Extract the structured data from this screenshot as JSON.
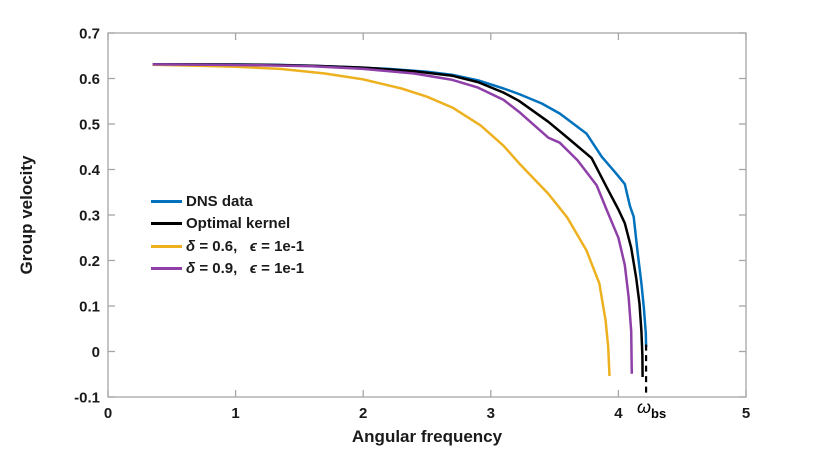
{
  "chart_data": {
    "type": "line",
    "title": "",
    "xlabel": "Angular frequency",
    "ylabel": "Group velocity",
    "xlim": [
      0,
      5
    ],
    "ylim": [
      -0.1,
      0.7
    ],
    "grid": false,
    "box": true,
    "tick_direction": "in",
    "legend_position": "inside-left-middle",
    "axis_color": "#a6a6a6",
    "text_color": "#1a1a1a",
    "xticks": [
      0,
      1,
      2,
      3,
      4,
      5
    ],
    "xtick_labels": [
      "0",
      "1",
      "2",
      "3",
      "4",
      "5"
    ],
    "yticks": [
      -0.1,
      0,
      0.1,
      0.2,
      0.3,
      0.4,
      0.5,
      0.6,
      0.7
    ],
    "ytick_labels": [
      "-0.1",
      "0",
      "0.1",
      "0.2",
      "0.3",
      "0.4",
      "0.5",
      "0.6",
      "0.7"
    ],
    "series": [
      {
        "name": "DNS data",
        "color": "#0072BD",
        "label_parts": [
          {
            "t": "DNS data",
            "i": false
          }
        ],
        "points": [
          [
            0.35,
            0.631
          ],
          [
            0.7,
            0.631
          ],
          [
            1.0,
            0.631
          ],
          [
            1.3,
            0.63
          ],
          [
            1.6,
            0.628
          ],
          [
            1.9,
            0.625
          ],
          [
            2.2,
            0.621
          ],
          [
            2.5,
            0.615
          ],
          [
            2.7,
            0.608
          ],
          [
            2.9,
            0.596
          ],
          [
            3.1,
            0.578
          ],
          [
            3.22,
            0.566
          ],
          [
            3.4,
            0.545
          ],
          [
            3.54,
            0.523
          ],
          [
            3.75,
            0.479
          ],
          [
            3.87,
            0.428
          ],
          [
            3.98,
            0.392
          ],
          [
            4.05,
            0.368
          ],
          [
            4.09,
            0.32
          ],
          [
            4.12,
            0.296
          ],
          [
            4.15,
            0.22
          ],
          [
            4.18,
            0.15
          ],
          [
            4.2,
            0.095
          ],
          [
            4.215,
            0.04
          ],
          [
            4.217,
            0.01
          ]
        ]
      },
      {
        "name": "Optimal kernel",
        "color": "#000000",
        "label_parts": [
          {
            "t": "Optimal kernel",
            "i": false
          }
        ],
        "points": [
          [
            0.35,
            0.631
          ],
          [
            0.8,
            0.631
          ],
          [
            1.2,
            0.63
          ],
          [
            1.6,
            0.628
          ],
          [
            2.0,
            0.624
          ],
          [
            2.4,
            0.616
          ],
          [
            2.7,
            0.606
          ],
          [
            2.9,
            0.592
          ],
          [
            3.1,
            0.569
          ],
          [
            3.22,
            0.551
          ],
          [
            3.45,
            0.505
          ],
          [
            3.6,
            0.47
          ],
          [
            3.79,
            0.425
          ],
          [
            3.91,
            0.36
          ],
          [
            4.0,
            0.312
          ],
          [
            4.05,
            0.282
          ],
          [
            4.1,
            0.228
          ],
          [
            4.14,
            0.16
          ],
          [
            4.165,
            0.105
          ],
          [
            4.18,
            0.045
          ],
          [
            4.188,
            -0.01
          ],
          [
            4.19,
            -0.056
          ]
        ]
      },
      {
        "name": "δ = 0.6, ϵ = 1e-1",
        "color": "#EDB120",
        "label_parts": [
          {
            "t": "δ",
            "i": true
          },
          {
            "t": " = 0.6, ",
            "i": false
          },
          {
            "t": "  ",
            "i": false
          },
          {
            "t": "ϵ",
            "i": true
          },
          {
            "t": " = 1e-1",
            "i": false
          }
        ],
        "points": [
          [
            0.35,
            0.63
          ],
          [
            0.7,
            0.628
          ],
          [
            1.0,
            0.626
          ],
          [
            1.35,
            0.621
          ],
          [
            1.7,
            0.611
          ],
          [
            2.0,
            0.598
          ],
          [
            2.3,
            0.578
          ],
          [
            2.5,
            0.56
          ],
          [
            2.7,
            0.536
          ],
          [
            2.92,
            0.497
          ],
          [
            3.1,
            0.452
          ],
          [
            3.22,
            0.414
          ],
          [
            3.45,
            0.347
          ],
          [
            3.6,
            0.294
          ],
          [
            3.75,
            0.222
          ],
          [
            3.85,
            0.15
          ],
          [
            3.9,
            0.068
          ],
          [
            3.92,
            0.01
          ],
          [
            3.93,
            -0.054
          ]
        ]
      },
      {
        "name": "δ = 0.9, ϵ = 1e-1",
        "color": "#8E3FA8",
        "label_parts": [
          {
            "t": "δ",
            "i": true
          },
          {
            "t": " = 0.9, ",
            "i": false
          },
          {
            "t": "  ",
            "i": false
          },
          {
            "t": "ϵ",
            "i": true
          },
          {
            "t": " = 1e-1",
            "i": false
          }
        ],
        "points": [
          [
            0.35,
            0.631
          ],
          [
            0.8,
            0.63
          ],
          [
            1.2,
            0.629
          ],
          [
            1.6,
            0.627
          ],
          [
            2.0,
            0.621
          ],
          [
            2.4,
            0.611
          ],
          [
            2.7,
            0.597
          ],
          [
            2.9,
            0.58
          ],
          [
            3.1,
            0.553
          ],
          [
            3.22,
            0.527
          ],
          [
            3.45,
            0.47
          ],
          [
            3.54,
            0.459
          ],
          [
            3.68,
            0.42
          ],
          [
            3.83,
            0.365
          ],
          [
            3.91,
            0.31
          ],
          [
            4.0,
            0.25
          ],
          [
            4.05,
            0.19
          ],
          [
            4.08,
            0.12
          ],
          [
            4.1,
            0.045
          ],
          [
            4.105,
            -0.049
          ]
        ]
      }
    ],
    "annotation": {
      "symbol": "ω",
      "subscript": "bs",
      "x": 4.217,
      "y_top": 0.015,
      "y_bottom": -0.093,
      "style": "dashed",
      "color": "#000000"
    }
  }
}
